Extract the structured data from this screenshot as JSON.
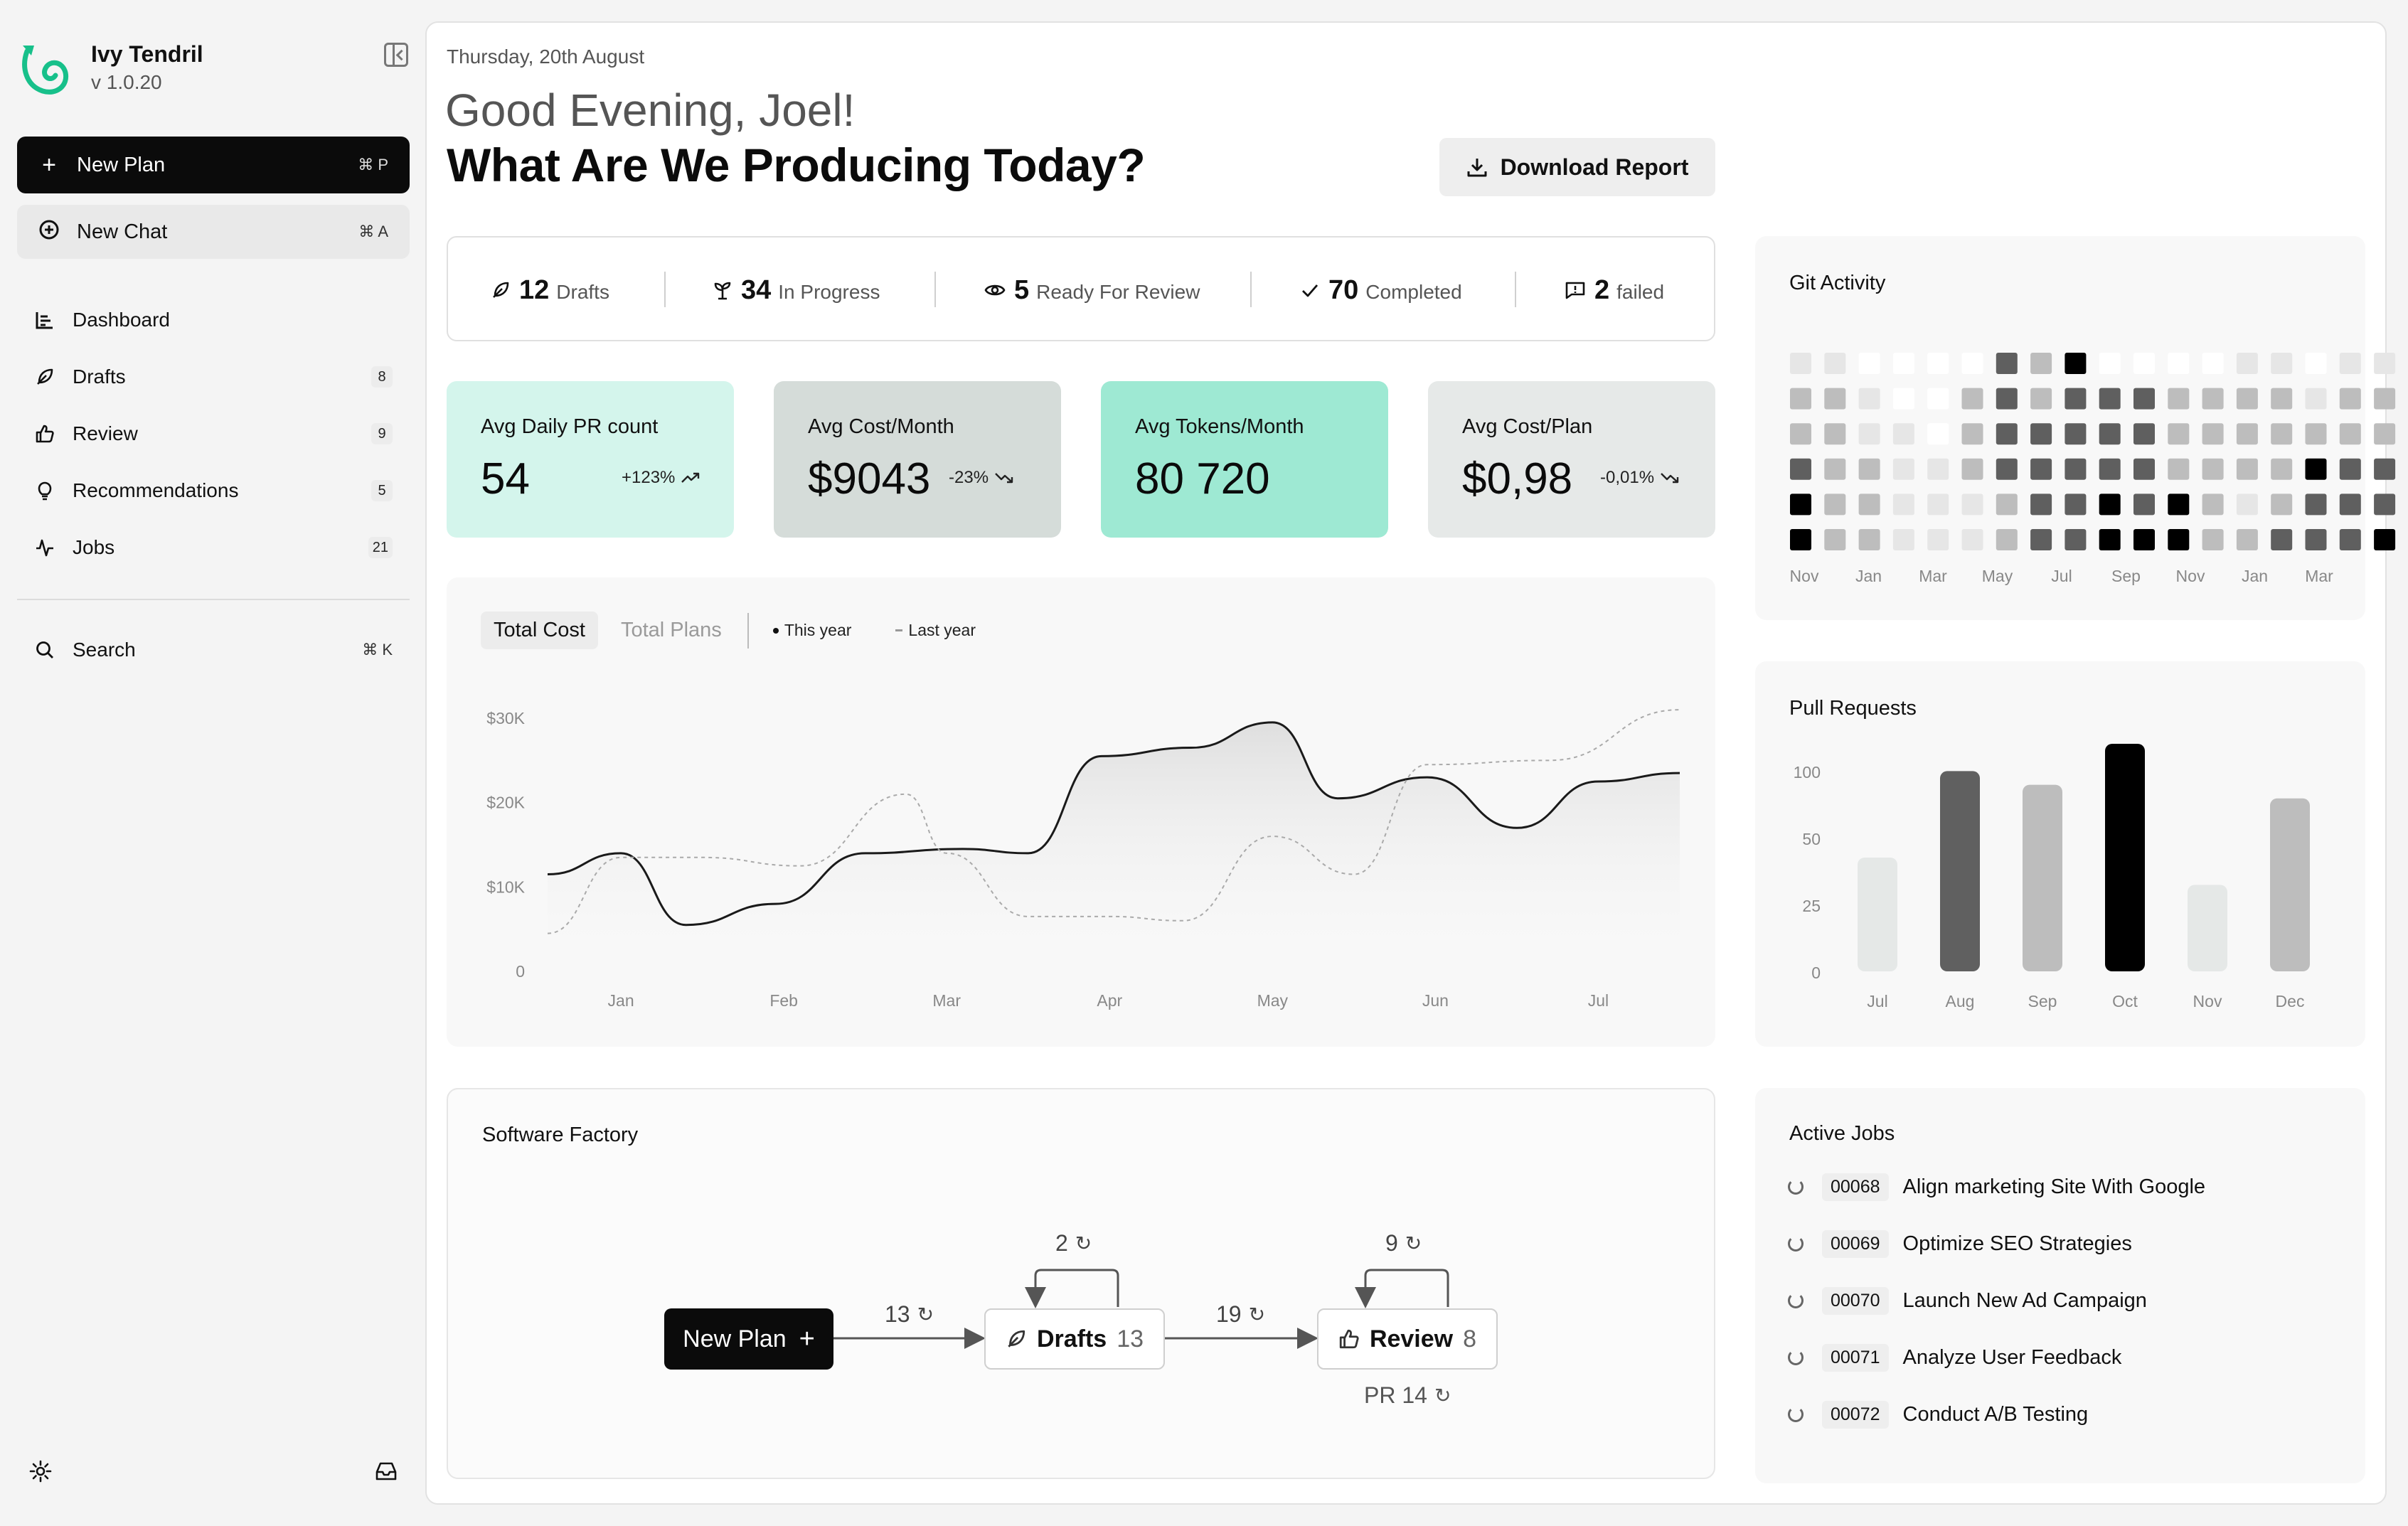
{
  "app": {
    "name": "Ivy Tendril",
    "version": "v 1.0.20"
  },
  "sidebar": {
    "new_plan": {
      "label": "New Plan",
      "shortcut": "⌘ P"
    },
    "new_chat": {
      "label": "New Chat",
      "shortcut": "⌘ A"
    },
    "items": [
      {
        "label": "Dashboard",
        "icon": "dashboard-icon",
        "badge": ""
      },
      {
        "label": "Drafts",
        "icon": "feather-icon",
        "badge": "8"
      },
      {
        "label": "Review",
        "icon": "thumbs-up-icon",
        "badge": "9"
      },
      {
        "label": "Recommendations",
        "icon": "lightbulb-icon",
        "badge": "5"
      },
      {
        "label": "Jobs",
        "icon": "activity-icon",
        "badge": "21"
      }
    ],
    "search": {
      "label": "Search",
      "shortcut": "⌘ K"
    }
  },
  "header": {
    "date": "Thursday, 20th August",
    "greeting": "Good Evening, Joel!",
    "headline": "What Are We Producing Today?",
    "download_label": "Download Report"
  },
  "status": [
    {
      "count": "12",
      "label": "Drafts",
      "icon": "feather-icon"
    },
    {
      "count": "34",
      "label": "In Progress",
      "icon": "sprout-icon"
    },
    {
      "count": "5",
      "label": "Ready For Review",
      "icon": "eye-icon"
    },
    {
      "count": "70",
      "label": "Completed",
      "icon": "check-icon"
    },
    {
      "count": "2",
      "label": "failed",
      "icon": "alert-message-icon"
    }
  ],
  "kpis": [
    {
      "label": "Avg Daily PR count",
      "value": "54",
      "delta": "+123%",
      "trend": "up",
      "color": "#d4f5ec"
    },
    {
      "label": "Avg Cost/Month",
      "value": "$9043",
      "delta": "-23%",
      "trend": "down",
      "color": "#d5dcd9"
    },
    {
      "label": "Avg Tokens/Month",
      "value": "80 720",
      "delta": "",
      "trend": "",
      "color": "#9ee9d3"
    },
    {
      "label": "Avg Cost/Plan",
      "value": "$0,98",
      "delta": "-0,01%",
      "trend": "down",
      "color": "#e6e9e8"
    }
  ],
  "cost_chart": {
    "tabs": [
      "Total Cost",
      "Total Plans"
    ],
    "active_tab": "Total Cost",
    "legend": [
      "This year",
      "Last year"
    ]
  },
  "chart_data": [
    {
      "type": "line",
      "title": "",
      "y_ticks": [
        "$30K",
        "$20K",
        "$10K",
        "0"
      ],
      "ylim": [
        0,
        30000
      ],
      "x_ticks": [
        "Jan",
        "Feb",
        "Mar",
        "Apr",
        "May",
        "Jun",
        "Jul"
      ],
      "xlim": [
        0.55,
        7.5
      ],
      "series": [
        {
          "name": "This year",
          "style": "solid",
          "x": [
            0.55,
            1.0,
            1.4,
            1.95,
            2.5,
            3.1,
            3.5,
            3.95,
            4.5,
            5.0,
            5.4,
            5.95,
            6.5,
            7.0,
            7.5
          ],
          "y": [
            11500,
            14000,
            5500,
            8000,
            14000,
            14500,
            14000,
            25500,
            26500,
            29500,
            20500,
            23000,
            17000,
            22500,
            23500
          ]
        },
        {
          "name": "Last year",
          "style": "dashed",
          "x": [
            0.55,
            1.0,
            1.5,
            2.1,
            2.75,
            3.0,
            3.5,
            4.0,
            4.45,
            5.0,
            5.5,
            5.95,
            6.7,
            7.5
          ],
          "y": [
            4500,
            13500,
            13500,
            12500,
            21000,
            14000,
            6500,
            6500,
            6000,
            16000,
            11500,
            24500,
            25000,
            31000
          ]
        }
      ]
    },
    {
      "type": "heatmap",
      "title": "Git Activity",
      "x_ticks": [
        "Nov",
        "Jan",
        "Mar",
        "May",
        "Jul",
        "Sep",
        "Nov",
        "Jan",
        "Mar"
      ],
      "levels": [
        "none",
        "low",
        "mid",
        "high",
        "max"
      ],
      "rows": [
        [
          1,
          1,
          0,
          0,
          0,
          0,
          3,
          2,
          4,
          0,
          0,
          0,
          0,
          1,
          1,
          0,
          1,
          1
        ],
        [
          2,
          2,
          1,
          0,
          0,
          2,
          3,
          2,
          3,
          3,
          3,
          2,
          2,
          2,
          2,
          1,
          2,
          2
        ],
        [
          2,
          2,
          1,
          1,
          0,
          2,
          3,
          3,
          3,
          3,
          3,
          2,
          2,
          2,
          2,
          2,
          2,
          2
        ],
        [
          3,
          2,
          2,
          1,
          1,
          2,
          3,
          3,
          3,
          3,
          3,
          2,
          2,
          2,
          2,
          4,
          3,
          3
        ],
        [
          4,
          2,
          2,
          1,
          1,
          1,
          2,
          3,
          3,
          4,
          3,
          4,
          2,
          1,
          2,
          3,
          3,
          3
        ],
        [
          4,
          2,
          2,
          1,
          1,
          1,
          2,
          3,
          3,
          4,
          4,
          4,
          2,
          2,
          3,
          3,
          3,
          4
        ]
      ]
    },
    {
      "type": "bar",
      "title": "Pull Requests",
      "categories": [
        "Jul",
        "Aug",
        "Sep",
        "Oct",
        "Nov",
        "Dec"
      ],
      "values": [
        50,
        88,
        82,
        100,
        38,
        76
      ],
      "bar_colors": [
        "#e5e8e7",
        "#606060",
        "#bdbdbd",
        "#000000",
        "#e5e8e7",
        "#bdbdbd"
      ],
      "y_ticks": [
        "100",
        "50",
        "25",
        "0"
      ],
      "ylim": [
        0,
        100
      ]
    }
  ],
  "factory": {
    "title": "Software Factory",
    "new_plan": "New Plan",
    "drafts_label": "Drafts",
    "drafts_count": "13",
    "review_label": "Review",
    "review_count": "8",
    "edge_to_drafts": "13",
    "edge_drafts_loop": "2",
    "edge_to_review": "19",
    "edge_review_loop": "9",
    "pr_label": "PR 14"
  },
  "git_activity": {
    "title": "Git Activity"
  },
  "pull_requests": {
    "title": "Pull Requests"
  },
  "active_jobs": {
    "title": "Active Jobs",
    "jobs": [
      {
        "id": "00068",
        "title": "Align marketing Site With Google"
      },
      {
        "id": "00069",
        "title": "Optimize SEO Strategies"
      },
      {
        "id": "00070",
        "title": "Launch New Ad Campaign"
      },
      {
        "id": "00071",
        "title": "Analyze User Feedback"
      },
      {
        "id": "00072",
        "title": "Conduct A/B Testing"
      }
    ]
  },
  "colors": {
    "accent_green": "#17c08a",
    "dark": "#0b0b0b",
    "heat_levels": [
      "#ffffff",
      "#e6e6e6",
      "#bdbdbd",
      "#5f5f5f",
      "#000000"
    ]
  }
}
